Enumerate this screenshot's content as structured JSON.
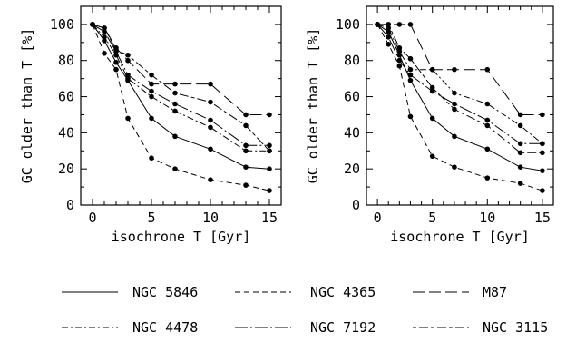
{
  "chart_data": [
    {
      "type": "line",
      "xlabel": "isochrone T [Gyr]",
      "ylabel": "GC older than T [%]",
      "xlim": [
        -1,
        16
      ],
      "ylim": [
        0,
        110
      ],
      "xticks": [
        0,
        5,
        10,
        15
      ],
      "yticks": [
        0,
        20,
        40,
        60,
        80,
        100
      ],
      "grid": false,
      "x": [
        0,
        1,
        2,
        3,
        5,
        7,
        10,
        13,
        15
      ],
      "series": [
        {
          "name": "NGC 5846",
          "style": "solid",
          "values": [
            100,
            91,
            79,
            69,
            48,
            38,
            31,
            21,
            20
          ]
        },
        {
          "name": "NGC 4365",
          "style": "dashed",
          "values": [
            100,
            84,
            75,
            48,
            26,
            20,
            14,
            11,
            8
          ]
        },
        {
          "name": "M87",
          "style": "longdash",
          "values": [
            100,
            98,
            87,
            80,
            67,
            67,
            67,
            50,
            50
          ]
        },
        {
          "name": "NGC 4478",
          "style": "dashdot",
          "values": [
            100,
            93,
            83,
            70,
            60,
            52,
            43,
            30,
            30
          ]
        },
        {
          "name": "NGC 7192",
          "style": "longdashdot",
          "values": [
            100,
            96,
            85,
            72,
            63,
            56,
            47,
            33,
            33
          ]
        },
        {
          "name": "NGC 3115",
          "style": "dashdotlong",
          "values": [
            100,
            98,
            86,
            83,
            72,
            62,
            57,
            44,
            30
          ]
        }
      ]
    },
    {
      "type": "line",
      "xlabel": "isochrone T [Gyr]",
      "ylabel": "GC older than T [%]",
      "xlim": [
        -1,
        16
      ],
      "ylim": [
        0,
        110
      ],
      "xticks": [
        0,
        5,
        10,
        15
      ],
      "yticks": [
        0,
        20,
        40,
        60,
        80,
        100
      ],
      "grid": false,
      "x": [
        0,
        1,
        2,
        3,
        5,
        7,
        10,
        13,
        15
      ],
      "series": [
        {
          "name": "NGC 5846",
          "style": "solid",
          "values": [
            100,
            96,
            83,
            69,
            48,
            38,
            31,
            21,
            19
          ]
        },
        {
          "name": "NGC 4365",
          "style": "dashed",
          "values": [
            100,
            89,
            77,
            49,
            27,
            21,
            15,
            12,
            8
          ]
        },
        {
          "name": "M87",
          "style": "longdash",
          "values": [
            100,
            100,
            100,
            100,
            75,
            75,
            75,
            50,
            50
          ]
        },
        {
          "name": "NGC 4478",
          "style": "dashdot",
          "values": [
            100,
            98,
            85,
            75,
            75,
            62,
            56,
            44,
            34
          ]
        },
        {
          "name": "NGC 7192",
          "style": "longdashdot",
          "values": [
            100,
            93,
            80,
            72,
            63,
            56,
            47,
            34,
            34
          ]
        },
        {
          "name": "NGC 3115",
          "style": "dashdotlong",
          "values": [
            100,
            100,
            87,
            81,
            65,
            53,
            44,
            29,
            29
          ]
        }
      ]
    }
  ],
  "legend": [
    {
      "label": "NGC 5846",
      "style": "solid"
    },
    {
      "label": "NGC 4365",
      "style": "dashed"
    },
    {
      "label": "M87",
      "style": "longdash"
    },
    {
      "label": "NGC 4478",
      "style": "dashdot"
    },
    {
      "label": "NGC 7192",
      "style": "longdashdot"
    },
    {
      "label": "NGC 3115",
      "style": "dashdotlong"
    }
  ]
}
